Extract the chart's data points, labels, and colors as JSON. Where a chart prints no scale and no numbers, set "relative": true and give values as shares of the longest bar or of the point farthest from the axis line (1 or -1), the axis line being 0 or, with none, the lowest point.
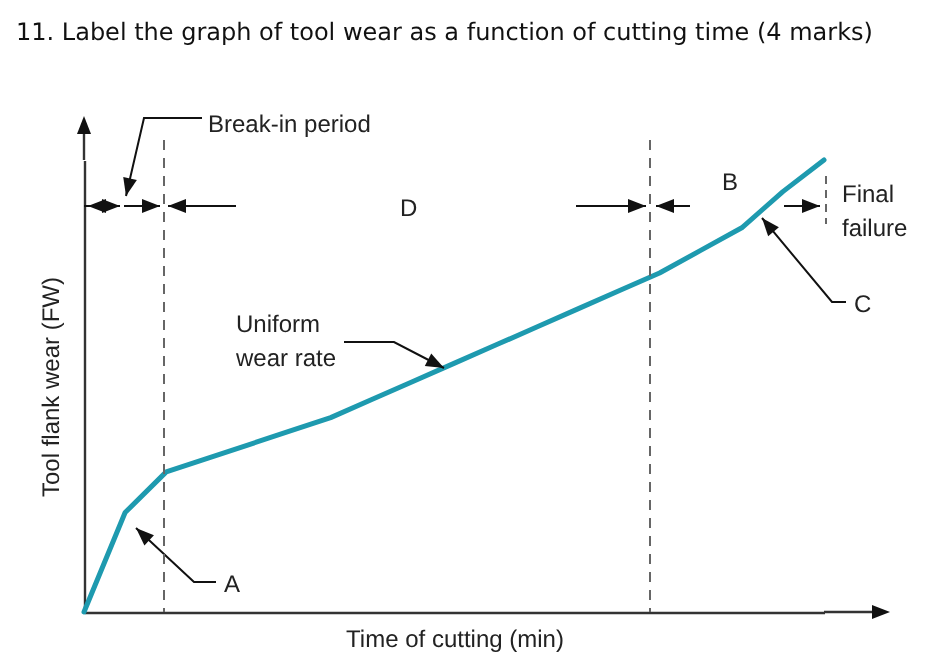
{
  "chart_data": {
    "type": "line",
    "title": "11. Label the graph of tool wear as a function of cutting time (4 marks)",
    "xlabel": "Time of cutting (min)",
    "ylabel": "Tool flank wear (FW)",
    "relative": true,
    "categories": [
      null,
      null,
      null,
      null,
      null,
      null,
      null,
      null,
      null,
      null,
      null,
      null,
      null,
      null,
      null,
      null,
      null,
      null,
      null
    ],
    "series": [
      {
        "color": "#1e9aaf",
        "values": [
          0,
          0.22,
          0.31,
          0.34,
          0.37,
          0.4,
          0.43,
          0.47,
          0.51,
          0.55,
          0.59,
          0.63,
          0.67,
          0.71,
          0.75,
          0.8,
          0.85,
          0.93,
          1
        ]
      }
    ],
    "annotations": [
      "Break-in period",
      "D",
      "B",
      "Final failure",
      "C",
      "Uniform wear rate",
      "A"
    ]
  }
}
